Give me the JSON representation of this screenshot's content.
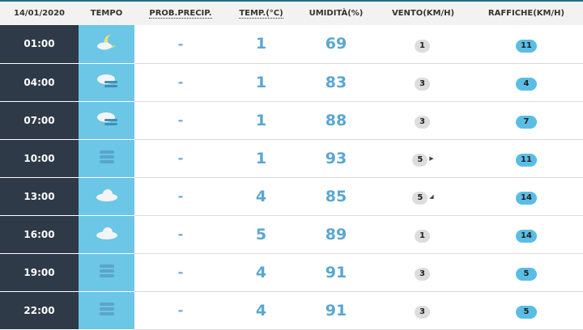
{
  "header": {
    "date": "14/01/2020",
    "tempo": "TEMPO",
    "prob": "PROB.PRECIP.",
    "temp": "TEMP.(°C)",
    "umid": "UMIDITÀ(%)",
    "vento": "VENTO(KM/H)",
    "raffiche": "RAFFICHE(KM/H)"
  },
  "rows": [
    {
      "time": "01:00",
      "icon": "moon-cloud",
      "prob": "-",
      "temp": "1",
      "umid": "69",
      "vento": "1",
      "arrow": "",
      "raffiche": "11"
    },
    {
      "time": "04:00",
      "icon": "cloud-fog",
      "prob": "-",
      "temp": "1",
      "umid": "83",
      "vento": "3",
      "arrow": "",
      "raffiche": "4"
    },
    {
      "time": "07:00",
      "icon": "cloud-fog",
      "prob": "-",
      "temp": "1",
      "umid": "88",
      "vento": "3",
      "arrow": "",
      "raffiche": "7"
    },
    {
      "time": "10:00",
      "icon": "fog",
      "prob": "-",
      "temp": "1",
      "umid": "93",
      "vento": "5",
      "arrow": "▶",
      "raffiche": "11"
    },
    {
      "time": "13:00",
      "icon": "cloud",
      "prob": "-",
      "temp": "4",
      "umid": "85",
      "vento": "5",
      "arrow": "◢",
      "raffiche": "14"
    },
    {
      "time": "16:00",
      "icon": "cloud",
      "prob": "-",
      "temp": "5",
      "umid": "89",
      "vento": "1",
      "arrow": "",
      "raffiche": "14"
    },
    {
      "time": "19:00",
      "icon": "fog",
      "prob": "-",
      "temp": "4",
      "umid": "91",
      "vento": "3",
      "arrow": "",
      "raffiche": "5"
    },
    {
      "time": "22:00",
      "icon": "fog",
      "prob": "-",
      "temp": "4",
      "umid": "91",
      "vento": "3",
      "arrow": "",
      "raffiche": "5"
    }
  ]
}
